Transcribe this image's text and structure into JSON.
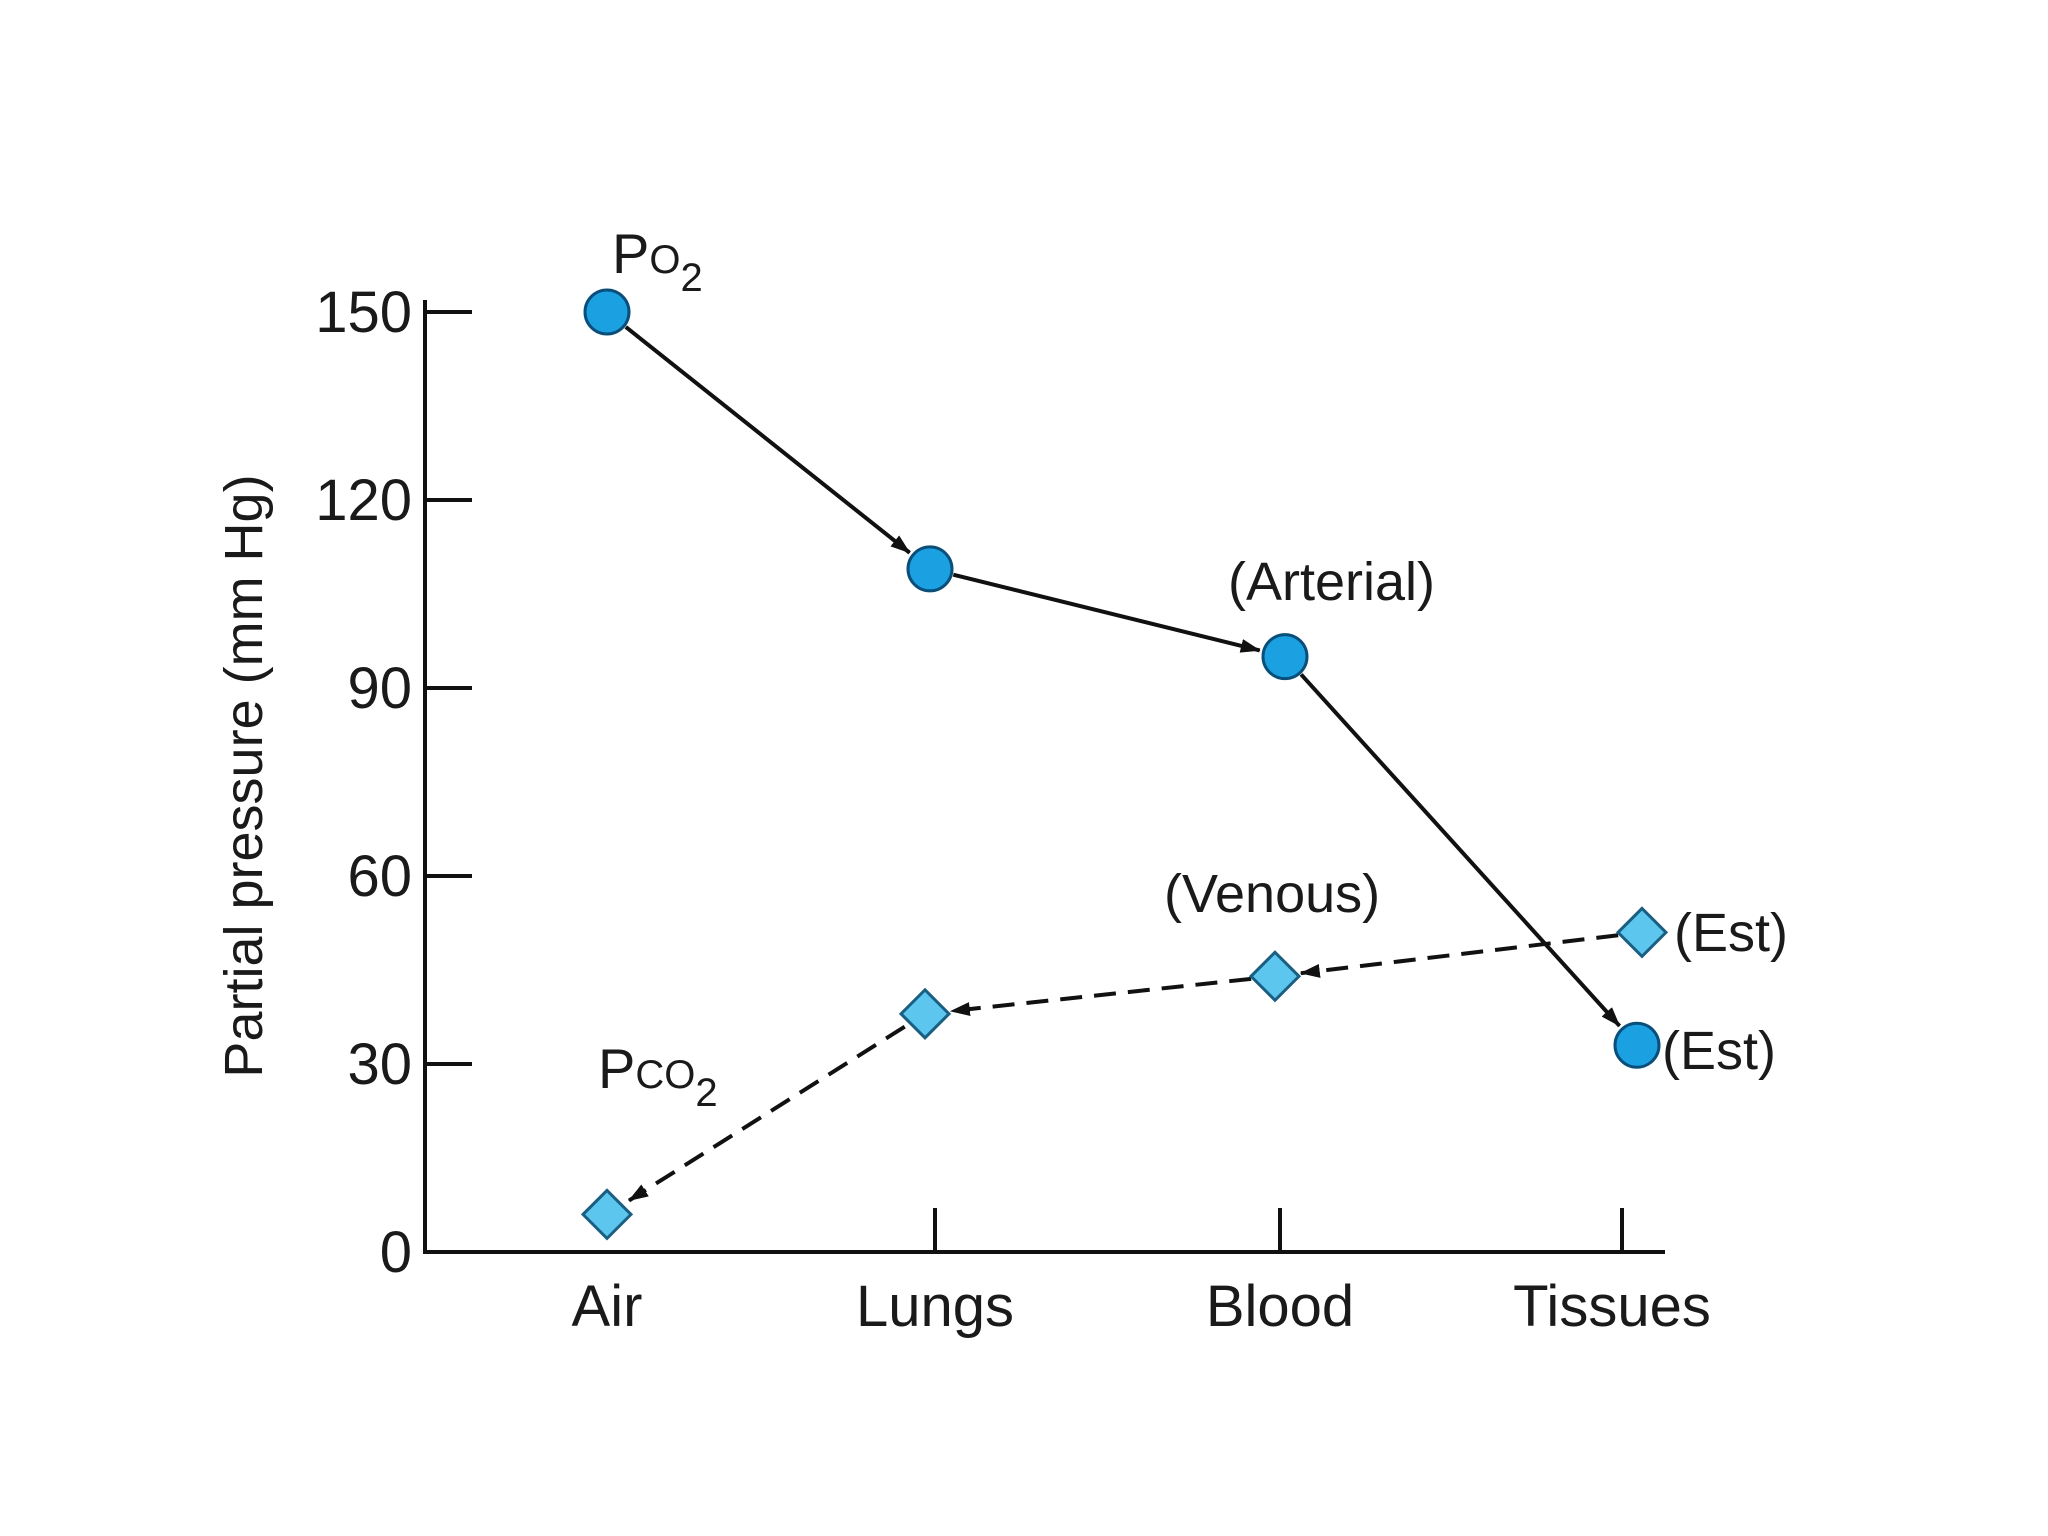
{
  "chart_data": {
    "type": "line",
    "ylabel": "Partial pressure (mm Hg)",
    "ylim": [
      0,
      150
    ],
    "yticks": [
      0,
      30,
      60,
      90,
      120,
      150
    ],
    "categories": [
      "Air",
      "Lungs",
      "Blood",
      "Tissues"
    ],
    "series": [
      {
        "name_main": "P",
        "name_sub": "O",
        "name_num": "2",
        "marker": "circle",
        "line_style": "solid",
        "color": "#1ba1e2",
        "flow": "Air → Tissues",
        "values": [
          150,
          109,
          95,
          33
        ]
      },
      {
        "name_main": "P",
        "name_sub": "CO",
        "name_num": "2",
        "marker": "diamond",
        "line_style": "dashed",
        "color": "#5cc6ee",
        "flow": "Tissues → Air",
        "values": [
          6,
          38,
          44,
          51
        ]
      }
    ],
    "annotations": {
      "arterial": "(Arterial)",
      "venous": "(Venous)",
      "est_o2": "(Est)",
      "est_co2": "(Est)"
    },
    "grid": false,
    "legend": "none"
  }
}
